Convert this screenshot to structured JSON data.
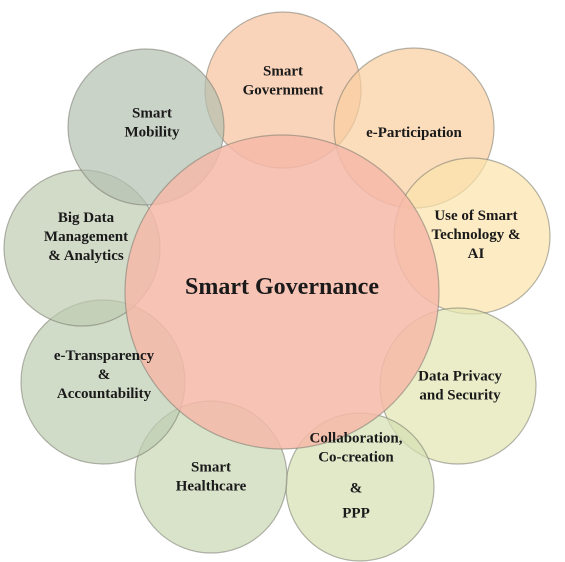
{
  "center": {
    "label": "Smart Governance",
    "color": "#f6b9a8"
  },
  "petals": [
    {
      "id": "smart-government",
      "lines": [
        "Smart",
        "Government"
      ],
      "color": "#f7c29d"
    },
    {
      "id": "e-participation",
      "lines": [
        "e-Participation"
      ],
      "color": "#f9cfa0"
    },
    {
      "id": "smart-technology",
      "lines": [
        "Use of Smart",
        "Technology &",
        "AI"
      ],
      "color": "#fbe3a9"
    },
    {
      "id": "data-privacy",
      "lines": [
        "Data Privacy",
        "and Security"
      ],
      "color": "#e3e6b2"
    },
    {
      "id": "collaboration",
      "lines": [
        "Collaboration,",
        "Co-creation",
        "&",
        "PPP"
      ],
      "color": "#d4dfb2"
    },
    {
      "id": "smart-healthcare",
      "lines": [
        "Smart",
        "Healthcare"
      ],
      "color": "#c8d7b4"
    },
    {
      "id": "e-transparency",
      "lines": [
        "e-Transparency",
        "&",
        "Accountability"
      ],
      "color": "#bdcdb0"
    },
    {
      "id": "big-data",
      "lines": [
        "Big Data",
        "Management",
        "& Analytics"
      ],
      "color": "#bfcab1"
    },
    {
      "id": "smart-mobility",
      "lines": [
        "Smart",
        "Mobility"
      ],
      "color": "#b3c0b0"
    }
  ]
}
